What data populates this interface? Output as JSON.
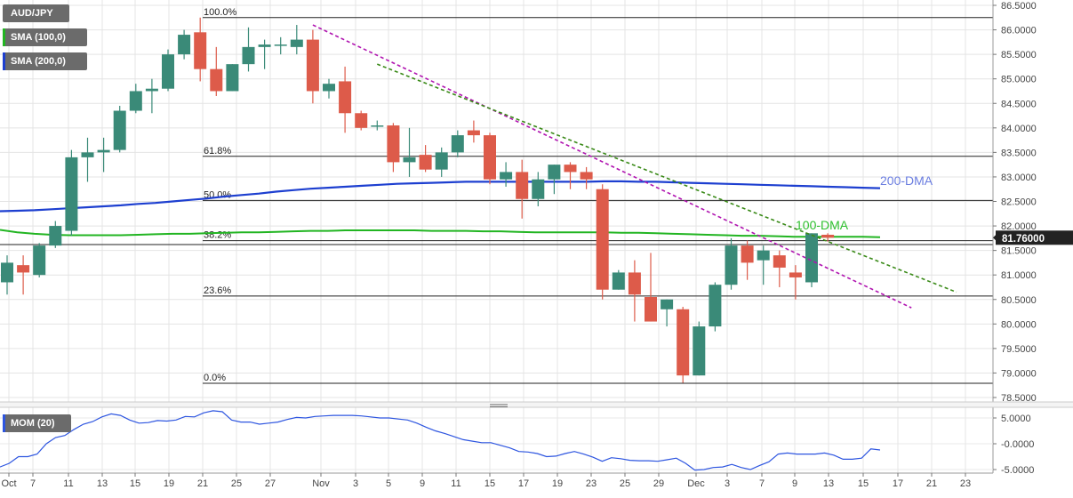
{
  "instrument": "AUD/JPY",
  "indicators": {
    "sma100": {
      "label": "SMA (100,0)",
      "color": "#22b522"
    },
    "sma200": {
      "label": "SMA (200,0)",
      "color": "#1d3fd0"
    },
    "mom": {
      "label": "MOM (20)",
      "color": "#2d55e0"
    }
  },
  "price_tag": {
    "value": "81.76000",
    "price": 81.76
  },
  "colors": {
    "up": "#3a8a78",
    "down": "#dd5b4a",
    "trend_magenta": "#b014b0",
    "trend_green": "#3a8a18",
    "fib": "#222222"
  },
  "chart_data": [
    {
      "type": "candlestick",
      "title": "AUD/JPY",
      "y_axis": {
        "ticks": [
          "86.5000",
          "86.0000",
          "85.5000",
          "85.0000",
          "84.5000",
          "84.0000",
          "83.5000",
          "83.0000",
          "82.5000",
          "82.0000",
          "81.5000",
          "81.0000",
          "80.5000",
          "80.0000",
          "79.5000",
          "79.0000",
          "78.5000"
        ],
        "range": [
          78.45,
          86.62
        ]
      },
      "x_axis": {
        "ticks": [
          "Oct",
          "7",
          "11",
          "13",
          "15",
          "19",
          "21",
          "25",
          "27",
          "Nov",
          "3",
          "5",
          "9",
          "11",
          "15",
          "17",
          "19",
          "23",
          "25",
          "29",
          "Dec",
          "3",
          "7",
          "9",
          "13",
          "15",
          "17",
          "21",
          "23"
        ]
      },
      "fibonacci": [
        {
          "label": "100.0%",
          "price": 86.25
        },
        {
          "label": "61.8%",
          "price": 83.42
        },
        {
          "label": "50.0%",
          "price": 82.52
        },
        {
          "label": "38.2%",
          "price": 81.7
        },
        {
          "label": "23.6%",
          "price": 80.57
        },
        {
          "label": "0.0%",
          "price": 78.79
        }
      ],
      "annotations": [
        {
          "label": "200-DMA",
          "color": "#6a7de0"
        },
        {
          "label": "100-DMA",
          "color": "#2fc02f"
        }
      ],
      "candles": [
        {
          "open": 80.85,
          "high": 81.4,
          "low": 80.6,
          "close": 81.25
        },
        {
          "open": 81.2,
          "high": 81.4,
          "low": 80.6,
          "close": 81.05
        },
        {
          "open": 81.0,
          "high": 81.65,
          "low": 80.95,
          "close": 81.6
        },
        {
          "open": 81.6,
          "high": 82.1,
          "low": 81.55,
          "close": 82.0
        },
        {
          "open": 81.9,
          "high": 83.55,
          "low": 81.8,
          "close": 83.4
        },
        {
          "open": 83.4,
          "high": 83.8,
          "low": 82.9,
          "close": 83.5
        },
        {
          "open": 83.5,
          "high": 83.8,
          "low": 83.1,
          "close": 83.55
        },
        {
          "open": 83.55,
          "high": 84.45,
          "low": 83.5,
          "close": 84.35
        },
        {
          "open": 84.35,
          "high": 84.9,
          "low": 84.3,
          "close": 84.75
        },
        {
          "open": 84.75,
          "high": 85.0,
          "low": 84.3,
          "close": 84.8
        },
        {
          "open": 84.8,
          "high": 85.6,
          "low": 84.75,
          "close": 85.5
        },
        {
          "open": 85.5,
          "high": 86.0,
          "low": 85.4,
          "close": 85.9
        },
        {
          "open": 85.95,
          "high": 86.25,
          "low": 84.95,
          "close": 85.2
        },
        {
          "open": 85.2,
          "high": 85.65,
          "low": 84.65,
          "close": 84.75
        },
        {
          "open": 84.75,
          "high": 85.3,
          "low": 84.75,
          "close": 85.3
        },
        {
          "open": 85.3,
          "high": 86.05,
          "low": 85.15,
          "close": 85.65
        },
        {
          "open": 85.65,
          "high": 85.8,
          "low": 85.2,
          "close": 85.7
        },
        {
          "open": 85.68,
          "high": 85.85,
          "low": 85.5,
          "close": 85.7
        },
        {
          "open": 85.65,
          "high": 86.1,
          "low": 85.5,
          "close": 85.8
        },
        {
          "open": 85.8,
          "high": 86.0,
          "low": 84.5,
          "close": 84.75
        },
        {
          "open": 84.75,
          "high": 85.0,
          "low": 84.6,
          "close": 84.9
        },
        {
          "open": 84.95,
          "high": 85.25,
          "low": 83.9,
          "close": 84.3
        },
        {
          "open": 84.3,
          "high": 84.35,
          "low": 83.95,
          "close": 84.0
        },
        {
          "open": 84.05,
          "high": 84.15,
          "low": 83.95,
          "close": 84.05
        },
        {
          "open": 84.05,
          "high": 84.1,
          "low": 83.1,
          "close": 83.3
        },
        {
          "open": 83.3,
          "high": 84.0,
          "low": 83.0,
          "close": 83.4
        },
        {
          "open": 83.45,
          "high": 83.65,
          "low": 83.1,
          "close": 83.15
        },
        {
          "open": 83.15,
          "high": 83.6,
          "low": 83.0,
          "close": 83.5
        },
        {
          "open": 83.5,
          "high": 83.95,
          "low": 83.4,
          "close": 83.85
        },
        {
          "open": 83.95,
          "high": 84.15,
          "low": 83.7,
          "close": 83.85
        },
        {
          "open": 83.85,
          "high": 83.9,
          "low": 82.85,
          "close": 82.95
        },
        {
          "open": 82.95,
          "high": 83.3,
          "low": 82.8,
          "close": 83.1
        },
        {
          "open": 83.1,
          "high": 83.35,
          "low": 82.15,
          "close": 82.55
        },
        {
          "open": 82.55,
          "high": 83.1,
          "low": 82.4,
          "close": 82.95
        },
        {
          "open": 82.95,
          "high": 83.25,
          "low": 82.65,
          "close": 83.25
        },
        {
          "open": 83.25,
          "high": 83.3,
          "low": 82.75,
          "close": 83.1
        },
        {
          "open": 83.1,
          "high": 83.2,
          "low": 82.75,
          "close": 82.95
        },
        {
          "open": 82.75,
          "high": 82.85,
          "low": 80.5,
          "close": 80.7
        },
        {
          "open": 80.7,
          "high": 81.1,
          "low": 80.7,
          "close": 81.05
        },
        {
          "open": 81.05,
          "high": 81.3,
          "low": 80.05,
          "close": 80.6
        },
        {
          "open": 80.55,
          "high": 81.45,
          "low": 80.05,
          "close": 80.05
        },
        {
          "open": 80.3,
          "high": 80.5,
          "low": 79.95,
          "close": 80.5
        },
        {
          "open": 80.3,
          "high": 80.35,
          "low": 78.8,
          "close": 78.95
        },
        {
          "open": 78.95,
          "high": 80.05,
          "low": 78.95,
          "close": 79.95
        },
        {
          "open": 79.95,
          "high": 80.85,
          "low": 79.85,
          "close": 80.8
        },
        {
          "open": 80.8,
          "high": 81.75,
          "low": 80.7,
          "close": 81.6
        },
        {
          "open": 81.6,
          "high": 81.7,
          "low": 80.9,
          "close": 81.25
        },
        {
          "open": 81.3,
          "high": 81.6,
          "low": 80.8,
          "close": 81.5
        },
        {
          "open": 81.4,
          "high": 81.5,
          "low": 80.75,
          "close": 81.15
        },
        {
          "open": 81.05,
          "high": 81.2,
          "low": 80.5,
          "close": 80.95
        },
        {
          "open": 80.85,
          "high": 81.85,
          "low": 80.75,
          "close": 81.85
        },
        {
          "open": 81.82,
          "high": 81.85,
          "low": 81.68,
          "close": 81.76
        }
      ],
      "sma100": [
        81.92,
        81.87,
        81.84,
        81.82,
        81.81,
        81.81,
        81.81,
        81.81,
        81.82,
        81.83,
        81.84,
        81.84,
        81.85,
        81.86,
        81.87,
        81.87,
        81.88,
        81.89,
        81.9,
        81.9,
        81.91,
        81.91,
        81.91,
        81.91,
        81.91,
        81.9,
        81.9,
        81.9,
        81.89,
        81.89,
        81.88,
        81.87,
        81.87,
        81.87,
        81.87,
        81.87,
        81.86,
        81.86,
        81.85,
        81.84,
        81.83,
        81.82,
        81.81,
        81.8,
        81.8,
        81.79,
        81.78,
        81.78,
        81.78,
        81.78,
        81.78,
        81.77
      ],
      "sma200": [
        82.3,
        82.31,
        82.32,
        82.34,
        82.36,
        82.38,
        82.4,
        82.42,
        82.45,
        82.47,
        82.5,
        82.53,
        82.56,
        82.6,
        82.63,
        82.66,
        82.7,
        82.73,
        82.76,
        82.78,
        82.8,
        82.82,
        82.84,
        82.86,
        82.87,
        82.88,
        82.89,
        82.9,
        82.9,
        82.9,
        82.9,
        82.9,
        82.9,
        82.9,
        82.9,
        82.91,
        82.91,
        82.9,
        82.9,
        82.89,
        82.88,
        82.87,
        82.86,
        82.85,
        82.84,
        82.83,
        82.82,
        82.81,
        82.8,
        82.79,
        82.78,
        82.77
      ],
      "trendlines": [
        {
          "color": "#b014b0",
          "from": {
            "index": 19,
            "price": 86.1
          },
          "to": {
            "index": 56.2,
            "price": 80.33
          }
        },
        {
          "color": "#3a8a18",
          "from": {
            "index": 23.0,
            "price": 85.3
          },
          "to": {
            "index": 59.0,
            "price": 80.65
          }
        }
      ]
    },
    {
      "type": "line",
      "title": "MOM (20)",
      "y_axis": {
        "ticks": [
          "5.0000",
          "-0.0000",
          "-5.0000"
        ],
        "range": [
          -6.2,
          7.2
        ]
      },
      "values": [
        -4.5,
        -3.8,
        -2.5,
        -2.5,
        -2.0,
        0.0,
        1.2,
        1.6,
        2.8,
        3.8,
        4.3,
        5.2,
        5.8,
        5.5,
        4.6,
        4.0,
        4.1,
        4.5,
        4.4,
        4.6,
        5.3,
        5.2,
        6.0,
        6.4,
        6.2,
        4.6,
        4.2,
        4.2,
        3.8,
        4.0,
        4.2,
        4.7,
        5.1,
        5.0,
        5.3,
        5.4,
        5.5,
        5.5,
        5.5,
        5.4,
        5.2,
        5.0,
        5.0,
        4.8,
        4.6,
        4.0,
        3.2,
        2.5,
        2.0,
        1.4,
        0.8,
        0.5,
        0.2,
        0.2,
        -0.3,
        -0.8,
        -1.5,
        -1.6,
        -1.9,
        -2.5,
        -2.4,
        -1.9,
        -1.5,
        -2.0,
        -2.6,
        -3.4,
        -2.7,
        -2.9,
        -3.2,
        -3.3,
        -3.3,
        -3.4,
        -3.1,
        -2.8,
        -3.8,
        -5.1,
        -5.0,
        -4.6,
        -4.5,
        -4.0,
        -4.6,
        -5.0,
        -4.2,
        -3.5,
        -2.0,
        -1.8,
        -2.0,
        -2.0,
        -2.0,
        -1.8,
        -2.2,
        -3.0,
        -3.0,
        -2.8,
        -1.0,
        -1.2
      ]
    }
  ]
}
